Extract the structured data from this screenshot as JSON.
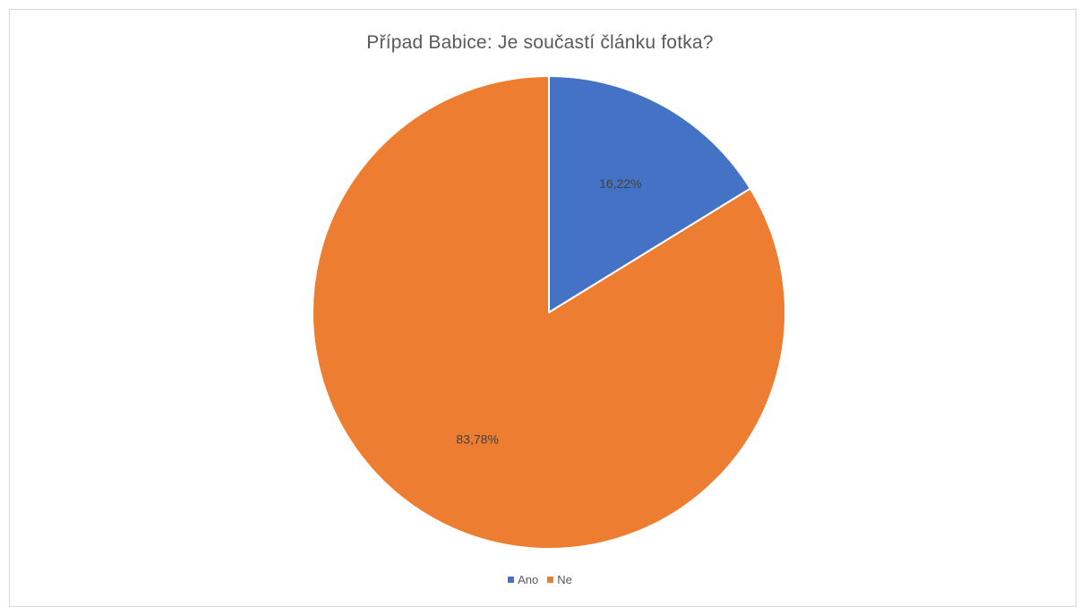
{
  "chart_data": {
    "type": "pie",
    "title": "Případ Babice: Je součastí článku fotka?",
    "categories": [
      "Ano",
      "Ne"
    ],
    "values": [
      16.22,
      83.78
    ],
    "labels": [
      "16,22%",
      "83,78%"
    ],
    "colors": [
      "#4472c4",
      "#ed7d31"
    ],
    "legend": "bottom"
  }
}
